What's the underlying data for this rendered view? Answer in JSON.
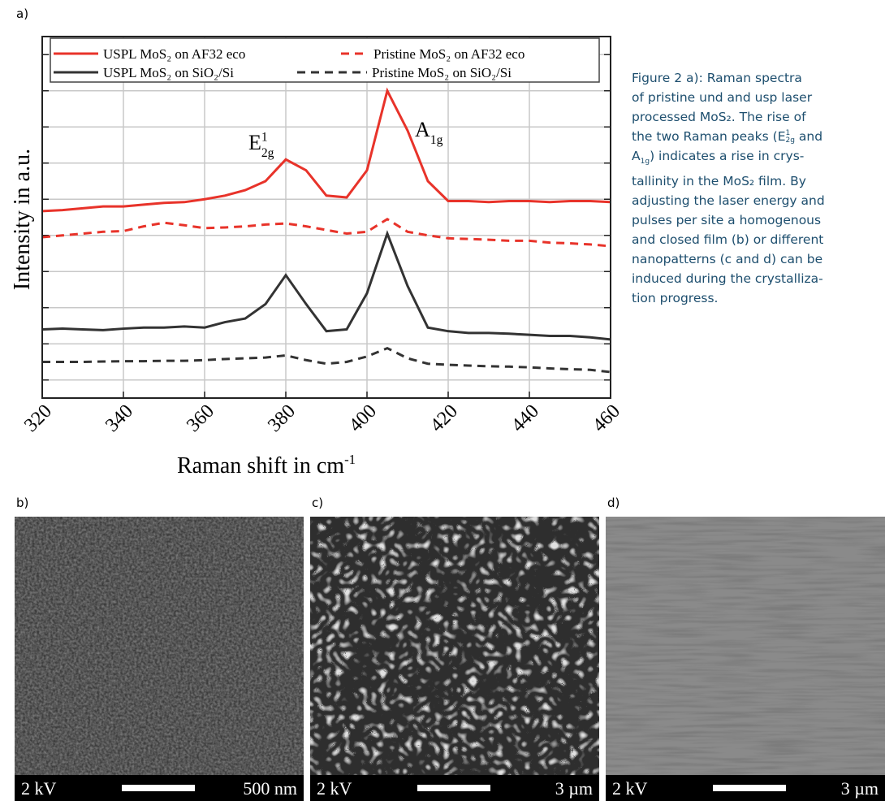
{
  "panel_label": "a)",
  "chart_data": {
    "type": "line",
    "x_label": {
      "text": "Raman shift in cm",
      "sup": "-1"
    },
    "y_label": "Intensity in a.u.",
    "x": [
      320,
      325,
      330,
      335,
      340,
      345,
      350,
      355,
      360,
      365,
      370,
      375,
      380,
      385,
      390,
      395,
      400,
      405,
      410,
      415,
      420,
      425,
      430,
      435,
      440,
      445,
      450,
      455,
      460
    ],
    "series": [
      {
        "name": "USPL MoS₂ on AF32 eco",
        "color": "#e8332a",
        "linestyle": "solid",
        "values": [
          5.17,
          5.2,
          5.25,
          5.3,
          5.3,
          5.35,
          5.4,
          5.42,
          5.5,
          5.6,
          5.75,
          6.0,
          6.6,
          6.3,
          5.6,
          5.55,
          6.3,
          8.5,
          7.4,
          6.0,
          5.45,
          5.45,
          5.42,
          5.45,
          5.45,
          5.42,
          5.45,
          5.45,
          5.42
        ]
      },
      {
        "name": "Pristine MoS₂ on AF32 eco",
        "color": "#e8332a",
        "linestyle": "dashed",
        "values": [
          4.45,
          4.5,
          4.55,
          4.6,
          4.62,
          4.75,
          4.85,
          4.78,
          4.7,
          4.72,
          4.75,
          4.8,
          4.83,
          4.75,
          4.65,
          4.55,
          4.6,
          4.95,
          4.6,
          4.5,
          4.42,
          4.4,
          4.38,
          4.35,
          4.35,
          4.3,
          4.28,
          4.25,
          4.2
        ]
      },
      {
        "name": "USPL MoS₂ on SiO₂/Si",
        "color": "#333333",
        "linestyle": "solid",
        "values": [
          1.9,
          1.92,
          1.9,
          1.88,
          1.92,
          1.95,
          1.95,
          1.98,
          1.95,
          2.1,
          2.2,
          2.6,
          3.4,
          2.6,
          1.85,
          1.9,
          2.9,
          4.55,
          3.1,
          1.95,
          1.85,
          1.8,
          1.8,
          1.78,
          1.75,
          1.72,
          1.72,
          1.68,
          1.62
        ]
      },
      {
        "name": "Pristine MoS₂ on SiO₂/Si",
        "color": "#333333",
        "linestyle": "dashed",
        "values": [
          1.0,
          1.0,
          1.0,
          1.01,
          1.02,
          1.02,
          1.03,
          1.03,
          1.05,
          1.08,
          1.1,
          1.12,
          1.18,
          1.05,
          0.95,
          1.0,
          1.15,
          1.38,
          1.1,
          0.95,
          0.92,
          0.9,
          0.88,
          0.87,
          0.85,
          0.82,
          0.8,
          0.78,
          0.72
        ]
      }
    ],
    "annotations": [
      {
        "text": "E",
        "sup": "1",
        "sub": "2g"
      },
      {
        "text": "A",
        "sub": "1g"
      }
    ],
    "xlim": [
      320,
      460
    ],
    "xticks": [
      320,
      340,
      360,
      380,
      400,
      420,
      440,
      460
    ],
    "ylim": [
      0,
      10
    ],
    "yticks": [
      0.5,
      1.5,
      2.5,
      3.5,
      4.5,
      5.5,
      6.5,
      7.5,
      8.5,
      9.5
    ],
    "grid": true
  },
  "caption": [
    [
      "Figure 2 a): Raman spectra"
    ],
    [
      "of pristine und and usp laser"
    ],
    [
      "processed MoS₂. The rise of"
    ],
    [
      "the two Raman peaks (E",
      {
        "sup": "1",
        "sub": "2g"
      },
      " and"
    ],
    [
      "A",
      {
        "sub": "1g"
      },
      ") indicates a rise in crys-"
    ],
    [
      "tallinity in the MoS₂ film. By"
    ],
    [
      "adjusting the laser energy and"
    ],
    [
      "pulses per site a homogenous"
    ],
    [
      "and closed film (b) or different"
    ],
    [
      "nanopatterns (c and d) can be"
    ],
    [
      "induced during the crystalliza-"
    ],
    [
      "tion progress."
    ]
  ],
  "panels": [
    {
      "label": "b)",
      "voltage": "2 kV",
      "scale": "500 nm"
    },
    {
      "label": "c)",
      "voltage": "2 kV",
      "scale": "3 µm"
    },
    {
      "label": "d)",
      "voltage": "2 kV",
      "scale": "3 µm"
    }
  ]
}
